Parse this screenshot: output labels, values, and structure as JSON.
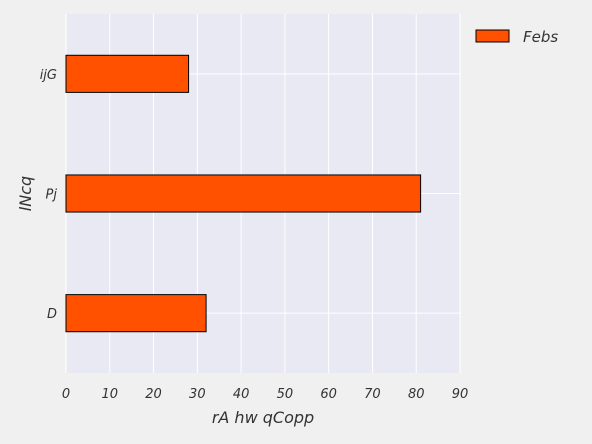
{
  "chart_data": {
    "type": "bar",
    "orientation": "horizontal",
    "categories": [
      "D",
      "Pj",
      "ijG"
    ],
    "series": [
      {
        "name": "Febs",
        "values": [
          32,
          81,
          28
        ]
      }
    ],
    "xlabel": "rA hw qCopp",
    "ylabel": "lNcq",
    "xlim": [
      0,
      90
    ],
    "xticks": [
      "0",
      "10",
      "20",
      "30",
      "40",
      "50",
      "60",
      "70",
      "80",
      "90"
    ],
    "grid": true,
    "legend": "top-right, outside plot",
    "colors": {
      "bar": "#ff5100",
      "bar_edge": "#000000",
      "plot_background": "#e8e9f3",
      "figure_background": "#f0f0f0",
      "grid": "#ffffff"
    }
  }
}
